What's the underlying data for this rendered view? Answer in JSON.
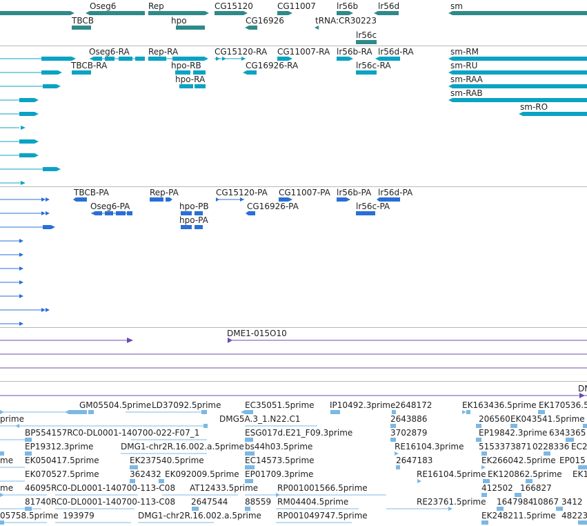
{
  "colors": {
    "gene": "#2e8a88",
    "mrna": "#0aa3c4",
    "protein": "#2a6fd6",
    "clone": "#6d4ab3",
    "est": "#7cb8e4",
    "divider": "#b8b8b8"
  },
  "genes": [
    {
      "label": "Oseg6"
    },
    {
      "label": "TBCB"
    },
    {
      "label": "Rep"
    },
    {
      "label": "hpo"
    },
    {
      "label": "CG15120"
    },
    {
      "label": "CG16926"
    },
    {
      "label": "CG11007"
    },
    {
      "label": "tRNA:CR30223"
    },
    {
      "label": "lr56b"
    },
    {
      "label": "lr56c"
    },
    {
      "label": "lr56d"
    },
    {
      "label": "sm"
    }
  ],
  "transcripts": [
    {
      "label": "Oseg6-RA"
    },
    {
      "label": "TBCB-RA"
    },
    {
      "label": "Rep-RA"
    },
    {
      "label": "hpo-RB"
    },
    {
      "label": "hpo-RA"
    },
    {
      "label": "CG15120-RA"
    },
    {
      "label": "CG16926-RA"
    },
    {
      "label": "CG11007-RA"
    },
    {
      "label": "lr56b-RA"
    },
    {
      "label": "lr56c-RA"
    },
    {
      "label": "lr56d-RA"
    },
    {
      "label": "sm-RM"
    },
    {
      "label": "sm-RU"
    },
    {
      "label": "sm-RAA"
    },
    {
      "label": "sm-RAB"
    },
    {
      "label": "sm-RO"
    }
  ],
  "proteins": [
    {
      "label": "TBCB-PA"
    },
    {
      "label": "Oseg6-PA"
    },
    {
      "label": "Rep-PA"
    },
    {
      "label": "hpo-PB"
    },
    {
      "label": "hpo-PA"
    },
    {
      "label": "CG15120-PA"
    },
    {
      "label": "CG16926-PA"
    },
    {
      "label": "CG11007-PA"
    },
    {
      "label": "lr56b-PA"
    },
    {
      "label": "lr56c-PA"
    },
    {
      "label": "lr56d-PA"
    }
  ],
  "clones": [
    {
      "label": "DME1-015O10"
    },
    {
      "label": "DN"
    }
  ],
  "ests": [
    {
      "label": "GM05504.5prime"
    },
    {
      "label": "LD37092.5prime"
    },
    {
      "label": "EC35051.5prime"
    },
    {
      "label": "IP10492.3prime"
    },
    {
      "label": "2648172"
    },
    {
      "label": "EK163436.5prime"
    },
    {
      "label": "EK170536.5"
    },
    {
      "label": "prime"
    },
    {
      "label": "DMG5A.3_1.N22.C1"
    },
    {
      "label": "2643886"
    },
    {
      "label": "206560"
    },
    {
      "label": "EK043541.5prime"
    },
    {
      "label": "BP554157RC0-DL0001-140700-022-F07_1"
    },
    {
      "label": "ESG017d.E21_F09.3prime"
    },
    {
      "label": "3702879"
    },
    {
      "label": "EP19842.3prime"
    },
    {
      "label": "6343365"
    },
    {
      "label": "EP19312.3prime"
    },
    {
      "label": "DMG1-chr2R.16.002.a.5prime"
    },
    {
      "label": "bs44h03.5prime"
    },
    {
      "label": "RE16104.3prime"
    },
    {
      "label": "515337"
    },
    {
      "label": "3871"
    },
    {
      "label": "0228336"
    },
    {
      "label": "EC2"
    },
    {
      "label": "me"
    },
    {
      "label": "EK050417.5prime"
    },
    {
      "label": "EK237540.5prime"
    },
    {
      "label": "EC14573.5prime"
    },
    {
      "label": "2647183"
    },
    {
      "label": "EK266042.5prime"
    },
    {
      "label": "EP015"
    },
    {
      "label": "EK070527.5prime"
    },
    {
      "label": "362432"
    },
    {
      "label": "EK092009.5prime"
    },
    {
      "label": "EP01709.3prime"
    },
    {
      "label": "RE16104.5prime"
    },
    {
      "label": "EK120862.5prime"
    },
    {
      "label": "EK1"
    },
    {
      "label": "me"
    },
    {
      "label": "46095RC0-DL0001-140700-113-C08"
    },
    {
      "label": "AT12433.5prime"
    },
    {
      "label": "RP001001566.5prime"
    },
    {
      "label": "412502"
    },
    {
      "label": "166827"
    },
    {
      "label": "81740RC0-DL0001-140700-113-C08"
    },
    {
      "label": "2647544"
    },
    {
      "label": "88559"
    },
    {
      "label": "RM04404.5prime"
    },
    {
      "label": "RE23761.5prime"
    },
    {
      "label": "1647984"
    },
    {
      "label": "10867"
    },
    {
      "label": "3412"
    },
    {
      "label": "05758.5prime"
    },
    {
      "label": "193979"
    },
    {
      "label": "DMG1-chr2R.16.002.a.5prime"
    },
    {
      "label": "RP001049747.5prime"
    },
    {
      "label": "EK248211.5prime"
    },
    {
      "label": "48223"
    }
  ]
}
